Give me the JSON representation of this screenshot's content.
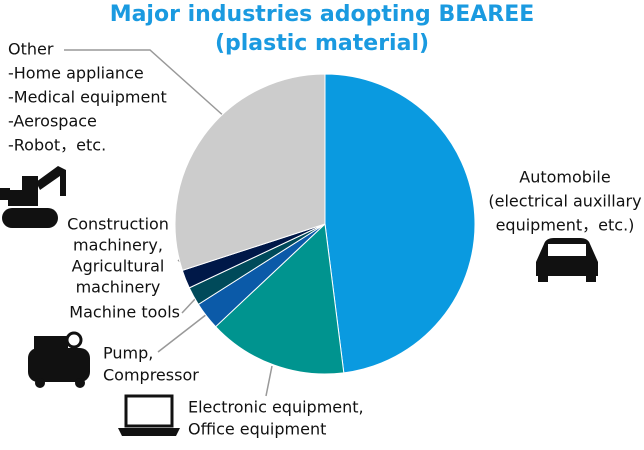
{
  "chart_data": {
    "type": "pie",
    "title": "Major industries adopting BEAREE",
    "subtitle": "(plastic material)",
    "categories": [
      [
        "Automobile",
        "(electrical auxillary",
        "equipment，etc.)"
      ],
      [
        "Electronic equipment,",
        "Office equipment"
      ],
      [
        "Pump,",
        "Compressor"
      ],
      [
        "Machine tools"
      ],
      [
        "Construction",
        "machinery,",
        "Agricultural",
        "machinery"
      ],
      [
        "Other",
        "-Home appliance",
        "-Medical equipment",
        "-Aerospace",
        "-Robot，etc."
      ]
    ],
    "values": [
      48,
      15,
      3,
      2,
      2,
      30
    ],
    "colors": [
      "#0a9ae0",
      "#00948f",
      "#0b5aa8",
      "#004a5a",
      "#001848",
      "#cccccc"
    ]
  }
}
